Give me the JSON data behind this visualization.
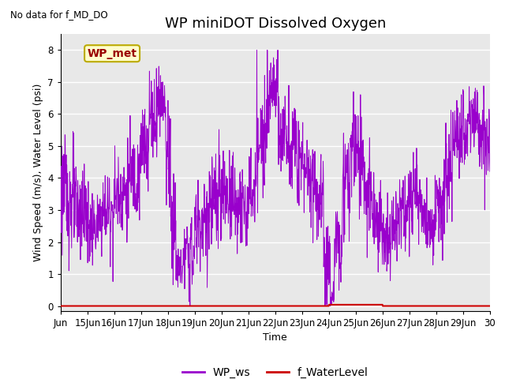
{
  "title": "WP miniDOT Dissolved Oxygen",
  "top_left_text": "No data for f_MD_DO",
  "ylabel": "Wind Speed (m/s), Water Level (psi)",
  "xlabel": "Time",
  "xlim_days": [
    14,
    30
  ],
  "ylim": [
    -0.15,
    8.5
  ],
  "yticks": [
    0.0,
    1.0,
    2.0,
    3.0,
    4.0,
    5.0,
    6.0,
    7.0,
    8.0
  ],
  "xtick_labels": [
    "Jun",
    "15Jun",
    "16Jun",
    "17Jun",
    "18Jun",
    "19Jun",
    "20Jun",
    "21Jun",
    "22Jun",
    "23Jun",
    "24Jun",
    "25Jun",
    "26Jun",
    "27Jun",
    "28Jun",
    "29Jun",
    "30"
  ],
  "xtick_positions": [
    14,
    15,
    16,
    17,
    18,
    19,
    20,
    21,
    22,
    23,
    24,
    25,
    26,
    27,
    28,
    29,
    30
  ],
  "bg_color": "#e8e8e8",
  "line_color_ws": "#9900cc",
  "line_color_wl": "#cc0000",
  "legend_ws": "WP_ws",
  "legend_wl": "f_WaterLevel",
  "text_box_label": "WP_met",
  "text_box_facecolor": "#ffffcc",
  "text_box_edgecolor": "#bbaa00",
  "text_box_textcolor": "#990000",
  "title_fontsize": 13,
  "label_fontsize": 9,
  "tick_fontsize": 8.5
}
